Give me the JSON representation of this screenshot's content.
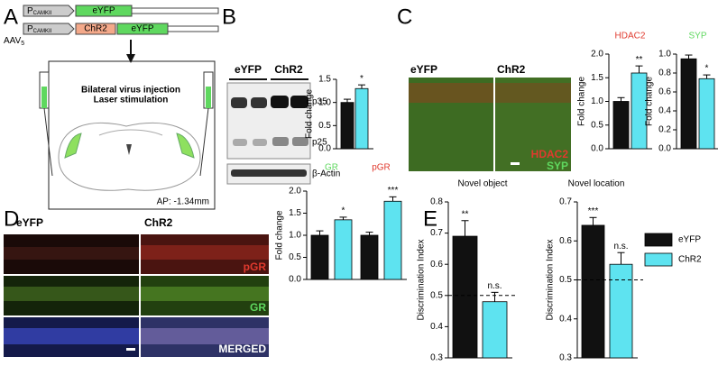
{
  "panels": [
    "A",
    "B",
    "C",
    "D",
    "E"
  ],
  "construct": {
    "vector": "AAV",
    "vector_sub": "5",
    "promoter": "P",
    "promoter_sub": "CAMKII",
    "genes": [
      "eYFP",
      "ChR2",
      "eYFP"
    ]
  },
  "injection": [
    "Bilateral virus injection",
    "Laser stimulation"
  ],
  "ap": "AP: -1.34mm",
  "blot": {
    "groups": [
      "eYFP",
      "ChR2"
    ],
    "bands": [
      "p35",
      "p25",
      "β-Actin"
    ]
  },
  "c_images": {
    "groups": [
      "eYFP",
      "ChR2"
    ],
    "stains": [
      "HDAC2",
      "SYP"
    ]
  },
  "d_images": {
    "groups": [
      "eYFP",
      "ChR2"
    ],
    "rows": [
      "pGR",
      "GR",
      "MERGED"
    ]
  },
  "legend": [
    {
      "name": "eYFP",
      "color": "#111111"
    },
    {
      "name": "ChR2",
      "color": "#5ee3f0"
    }
  ],
  "chart_data": [
    {
      "type": "bar",
      "ylabel": "Fold change",
      "ylim": [
        0,
        1.5
      ],
      "yticks": [
        {
          "value": 0,
          "label": "0.0"
        },
        {
          "value": 0.5,
          "label": "0.5"
        },
        {
          "value": 1,
          "label": "1.0"
        },
        {
          "value": 1.5,
          "label": "1.5"
        }
      ],
      "series": [
        {
          "color": "#111111",
          "values": [
            1.0
          ],
          "errors": [
            0.07
          ],
          "labels": [
            null
          ]
        },
        {
          "color": "#5ee3f0",
          "values": [
            1.3
          ],
          "errors": [
            0.08
          ],
          "labels": [
            "*"
          ]
        }
      ]
    },
    {
      "type": "bar",
      "title": "HDAC2",
      "title_color": "#e03a2e",
      "ylabel": "Fold change",
      "ylim": [
        0,
        2
      ],
      "yticks": [
        {
          "value": 0,
          "label": "0.0"
        },
        {
          "value": 0.5,
          "label": "0.5"
        },
        {
          "value": 1,
          "label": "1.0"
        },
        {
          "value": 1.5,
          "label": "1.5"
        },
        {
          "value": 2,
          "label": "2.0"
        }
      ],
      "series": [
        {
          "color": "#111111",
          "values": [
            1.0
          ],
          "errors": [
            0.08
          ],
          "labels": [
            null
          ]
        },
        {
          "color": "#5ee3f0",
          "values": [
            1.6
          ],
          "errors": [
            0.15
          ],
          "labels": [
            "**"
          ]
        }
      ]
    },
    {
      "type": "bar",
      "title": "SYP",
      "title_color": "#5fd85f",
      "ylabel": "Fold change",
      "ylim": [
        0,
        1
      ],
      "yticks": [
        {
          "value": 0,
          "label": "0.0"
        },
        0.2,
        0.4,
        0.6,
        0.8,
        {
          "value": 1,
          "label": "1.0"
        }
      ],
      "series": [
        {
          "color": "#111111",
          "values": [
            0.95
          ],
          "errors": [
            0.04
          ],
          "labels": [
            null
          ]
        },
        {
          "color": "#5ee3f0",
          "values": [
            0.74
          ],
          "errors": [
            0.04
          ],
          "labels": [
            "*"
          ]
        }
      ]
    },
    {
      "type": "bar",
      "ylabel": "Fold change",
      "ylim": [
        0,
        2
      ],
      "categories": [
        "GR",
        "pGR"
      ],
      "category_colors": [
        "#5fd85f",
        "#e03a2e"
      ],
      "yticks": [
        {
          "value": 0,
          "label": "0.0"
        },
        {
          "value": 0.5,
          "label": "0.5"
        },
        {
          "value": 1,
          "label": "1.0"
        },
        {
          "value": 1.5,
          "label": "1.5"
        },
        {
          "value": 2,
          "label": "2.0"
        }
      ],
      "series": [
        {
          "color": "#111111",
          "values": [
            1.0,
            1.0
          ],
          "errors": [
            0.1,
            0.07
          ],
          "labels": [
            null,
            null
          ]
        },
        {
          "color": "#5ee3f0",
          "values": [
            1.35,
            1.77
          ],
          "errors": [
            0.06,
            0.1
          ],
          "labels": [
            "*",
            "***"
          ]
        }
      ]
    },
    {
      "type": "bar",
      "title": "Novel object",
      "ylabel": "Discrimination Index",
      "ylim": [
        0.3,
        0.8
      ],
      "refline": 0.5,
      "yticks": [
        0.3,
        0.4,
        0.5,
        0.6,
        0.7,
        0.8
      ],
      "series": [
        {
          "color": "#111111",
          "values": [
            0.69
          ],
          "errors": [
            0.05
          ],
          "labels": [
            "**"
          ]
        },
        {
          "color": "#5ee3f0",
          "values": [
            0.48
          ],
          "errors": [
            0.03
          ],
          "labels": [
            "n.s."
          ]
        }
      ]
    },
    {
      "type": "bar",
      "title": "Novel location",
      "ylabel": "Discrimination Index",
      "ylim": [
        0.3,
        0.7
      ],
      "refline": 0.5,
      "yticks": [
        0.3,
        0.4,
        0.5,
        0.6,
        0.7
      ],
      "series": [
        {
          "color": "#111111",
          "values": [
            0.64
          ],
          "errors": [
            0.02
          ],
          "labels": [
            "***"
          ]
        },
        {
          "color": "#5ee3f0",
          "values": [
            0.54
          ],
          "errors": [
            0.03
          ],
          "labels": [
            "n.s."
          ]
        }
      ]
    }
  ]
}
